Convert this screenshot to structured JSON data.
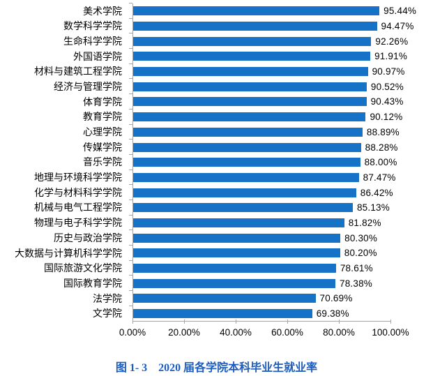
{
  "chart_data": {
    "type": "bar",
    "orientation": "horizontal",
    "title": "图 1- 3  2020 届各学院本科毕业生就业率",
    "xlabel": "",
    "ylabel": "",
    "xlim": [
      0,
      100
    ],
    "grid": false,
    "legend": null,
    "bar_color": "#1572C6",
    "axis_color": "#A6A6A6",
    "x_ticks": [
      "0.00%",
      "20.00%",
      "40.00%",
      "60.00%",
      "80.00%",
      "100.00%"
    ],
    "categories": [
      "美术学院",
      "数学科学学院",
      "生命科学学院",
      "外国语学院",
      "材料与建筑工程学院",
      "经济与管理学院",
      "体育学院",
      "教育学院",
      "心理学院",
      "传媒学院",
      "音乐学院",
      "地理与环境科学学院",
      "化学与材料科学学院",
      "机械与电气工程学院",
      "物理与电子科学学院",
      "历史与政治学院",
      "大数据与计算机科学学院",
      "国际旅游文化学院",
      "国际教育学院",
      "法学院",
      "文学院"
    ],
    "values": [
      95.44,
      94.47,
      92.26,
      91.91,
      90.97,
      90.52,
      90.43,
      90.12,
      88.89,
      88.28,
      88.0,
      87.47,
      86.42,
      85.13,
      81.82,
      80.3,
      80.2,
      78.61,
      78.38,
      70.69,
      69.38
    ],
    "value_labels": [
      "95.44%",
      "94.47%",
      "92.26%",
      "91.91%",
      "90.97%",
      "90.52%",
      "90.43%",
      "90.12%",
      "88.89%",
      "88.28%",
      "88.00%",
      "87.47%",
      "86.42%",
      "85.13%",
      "81.82%",
      "80.30%",
      "80.20%",
      "78.61%",
      "78.38%",
      "70.69%",
      "69.38%"
    ]
  },
  "caption": {
    "figure_label": "图 1- 3",
    "text": "2020 届各学院本科毕业生就业率",
    "color": "#1C5CBF"
  }
}
